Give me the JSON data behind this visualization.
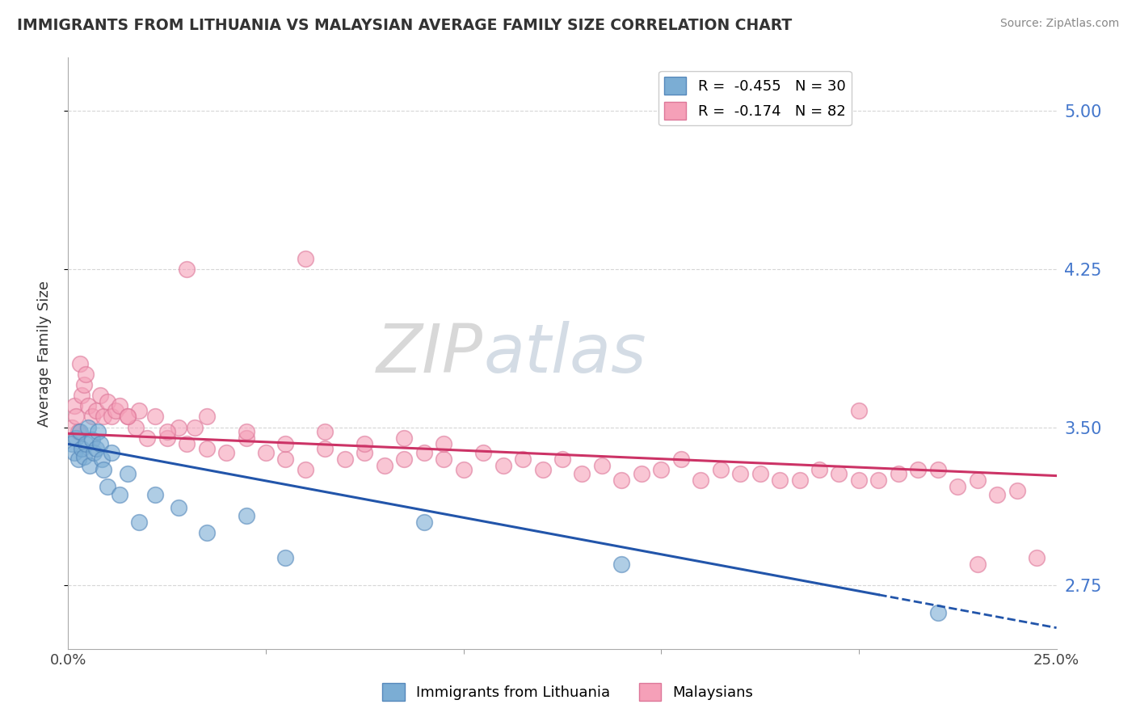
{
  "title": "IMMIGRANTS FROM LITHUANIA VS MALAYSIAN AVERAGE FAMILY SIZE CORRELATION CHART",
  "source": "Source: ZipAtlas.com",
  "ylabel": "Average Family Size",
  "yticks": [
    2.75,
    3.5,
    4.25,
    5.0
  ],
  "xlim": [
    0.0,
    25.0
  ],
  "ylim": [
    2.45,
    5.25
  ],
  "background_color": "#ffffff",
  "grid_color": "#cccccc",
  "title_color": "#333333",
  "yaxis_label_color": "#4477cc",
  "blue_color": "#7badd4",
  "blue_edge": "#5588bb",
  "blue_line_color": "#2255aa",
  "pink_color": "#f5a0b8",
  "pink_edge": "#dd7799",
  "pink_line_color": "#cc3366",
  "blue_label": "R =  -0.455   N = 30",
  "pink_label": "R =  -0.174   N = 82",
  "blue_bot_label": "Immigrants from Lithuania",
  "pink_bot_label": "Malaysians",
  "watermark_zip": "ZIP",
  "watermark_atlas": "atlas",
  "blue_x": [
    0.1,
    0.15,
    0.2,
    0.25,
    0.3,
    0.35,
    0.4,
    0.45,
    0.5,
    0.55,
    0.6,
    0.65,
    0.7,
    0.75,
    0.8,
    0.85,
    0.9,
    1.0,
    1.1,
    1.3,
    1.5,
    1.8,
    2.2,
    2.8,
    3.5,
    4.5,
    5.5,
    9.0,
    14.0,
    22.0
  ],
  "blue_y": [
    3.42,
    3.38,
    3.45,
    3.35,
    3.48,
    3.4,
    3.36,
    3.42,
    3.5,
    3.32,
    3.44,
    3.38,
    3.4,
    3.48,
    3.42,
    3.35,
    3.3,
    3.22,
    3.38,
    3.18,
    3.28,
    3.05,
    3.18,
    3.12,
    3.0,
    3.08,
    2.88,
    3.05,
    2.85,
    2.62
  ],
  "pink_x": [
    0.1,
    0.15,
    0.2,
    0.25,
    0.3,
    0.35,
    0.4,
    0.45,
    0.5,
    0.6,
    0.7,
    0.8,
    0.9,
    1.0,
    1.1,
    1.2,
    1.3,
    1.5,
    1.7,
    1.8,
    2.0,
    2.2,
    2.5,
    2.8,
    3.0,
    3.2,
    3.5,
    4.0,
    4.5,
    5.0,
    5.5,
    6.0,
    6.5,
    7.0,
    7.5,
    8.0,
    8.5,
    9.0,
    9.5,
    10.0,
    11.0,
    12.0,
    12.5,
    13.0,
    14.0,
    15.0,
    16.0,
    17.0,
    18.0,
    19.0,
    20.0,
    21.0,
    22.0,
    23.0,
    24.0,
    1.5,
    2.5,
    3.5,
    4.5,
    5.5,
    6.5,
    7.5,
    8.5,
    9.5,
    10.5,
    11.5,
    13.5,
    14.5,
    15.5,
    16.5,
    17.5,
    18.5,
    19.5,
    20.5,
    21.5,
    22.5,
    23.5,
    24.5,
    3.0,
    6.0,
    20.0,
    23.0
  ],
  "pink_y": [
    3.5,
    3.6,
    3.55,
    3.48,
    3.8,
    3.65,
    3.7,
    3.75,
    3.6,
    3.55,
    3.58,
    3.65,
    3.55,
    3.62,
    3.55,
    3.58,
    3.6,
    3.55,
    3.5,
    3.58,
    3.45,
    3.55,
    3.45,
    3.5,
    3.42,
    3.5,
    3.4,
    3.38,
    3.45,
    3.38,
    3.35,
    3.3,
    3.4,
    3.35,
    3.38,
    3.32,
    3.35,
    3.38,
    3.35,
    3.3,
    3.32,
    3.3,
    3.35,
    3.28,
    3.25,
    3.3,
    3.25,
    3.28,
    3.25,
    3.3,
    3.25,
    3.28,
    3.3,
    3.25,
    3.2,
    3.55,
    3.48,
    3.55,
    3.48,
    3.42,
    3.48,
    3.42,
    3.45,
    3.42,
    3.38,
    3.35,
    3.32,
    3.28,
    3.35,
    3.3,
    3.28,
    3.25,
    3.28,
    3.25,
    3.3,
    3.22,
    3.18,
    2.88,
    4.25,
    4.3,
    3.58,
    2.85
  ],
  "blue_line_x0": 0.0,
  "blue_line_y0": 3.42,
  "blue_line_x1": 25.0,
  "blue_line_y1": 2.55,
  "blue_solid_end": 20.5,
  "pink_line_x0": 0.0,
  "pink_line_y0": 3.47,
  "pink_line_x1": 25.0,
  "pink_line_y1": 3.27
}
